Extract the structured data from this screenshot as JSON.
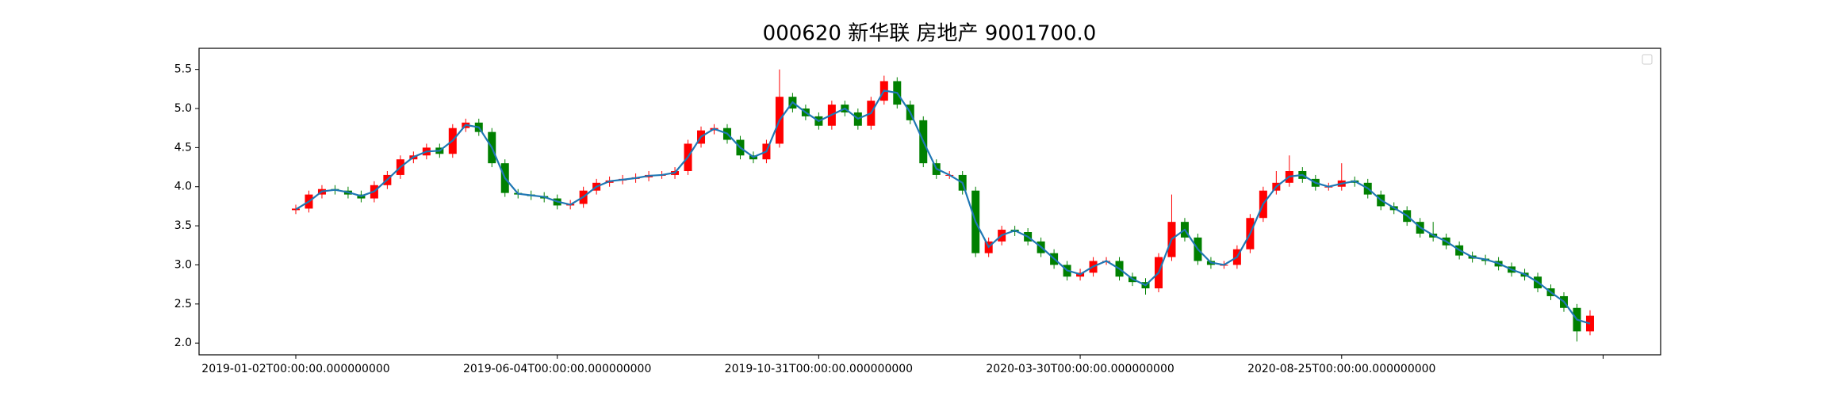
{
  "chart_data": {
    "type": "candlestick",
    "title": "000620 新华联 房地产 9001700.0",
    "x": [
      0,
      5,
      10,
      15,
      20,
      25,
      30,
      35,
      40,
      45,
      50,
      55,
      60,
      65,
      70,
      75,
      80,
      85,
      90,
      95,
      100,
      105,
      110,
      115,
      120,
      125,
      130,
      135,
      140,
      145,
      150,
      155,
      160,
      165,
      170,
      175,
      180,
      185,
      190,
      195,
      200,
      205,
      210,
      215,
      220,
      225,
      230,
      235,
      240,
      245,
      250,
      255,
      260,
      265,
      270,
      275,
      280,
      285,
      290,
      295,
      300,
      305,
      310,
      315,
      320,
      325,
      330,
      335,
      340,
      345,
      350,
      355,
      360,
      365,
      370,
      375,
      380,
      385,
      390,
      395,
      400,
      405,
      410,
      415,
      420,
      425,
      430,
      435,
      440,
      445,
      450,
      455,
      460,
      465,
      470,
      475,
      480,
      485,
      490,
      495
    ],
    "open": [
      3.7,
      3.72,
      3.9,
      3.97,
      3.95,
      3.9,
      3.85,
      4.02,
      4.15,
      4.35,
      4.4,
      4.5,
      4.42,
      4.75,
      4.82,
      4.7,
      4.3,
      3.92,
      3.9,
      3.88,
      3.85,
      3.76,
      3.78,
      3.95,
      4.05,
      4.08,
      4.1,
      4.12,
      4.15,
      4.15,
      4.2,
      4.55,
      4.72,
      4.75,
      4.6,
      4.4,
      4.35,
      4.55,
      5.15,
      5.0,
      4.9,
      4.78,
      5.05,
      4.95,
      4.78,
      5.1,
      5.35,
      5.05,
      4.85,
      4.3,
      4.15,
      4.15,
      3.95,
      3.15,
      3.3,
      3.45,
      3.42,
      3.3,
      3.15,
      3.0,
      2.85,
      2.9,
      3.05,
      3.05,
      2.85,
      2.78,
      2.7,
      3.1,
      3.55,
      3.35,
      3.05,
      3.0,
      3.0,
      3.2,
      3.6,
      3.95,
      4.05,
      4.2,
      4.1,
      4.0,
      4.0,
      4.08,
      4.05,
      3.9,
      3.75,
      3.7,
      3.55,
      3.4,
      3.35,
      3.25,
      3.12,
      3.08,
      3.05,
      2.98,
      2.9,
      2.85,
      2.7,
      2.6,
      2.45,
      2.15
    ],
    "high": [
      3.77,
      3.95,
      4.02,
      4.02,
      4.0,
      3.95,
      4.07,
      4.2,
      4.4,
      4.45,
      4.55,
      4.55,
      4.8,
      4.87,
      4.87,
      4.75,
      4.35,
      3.97,
      3.95,
      3.93,
      3.9,
      3.83,
      4.0,
      4.1,
      4.13,
      4.15,
      4.17,
      4.2,
      4.2,
      4.25,
      4.6,
      4.77,
      4.8,
      4.8,
      4.65,
      4.45,
      4.6,
      5.5,
      5.2,
      5.05,
      4.95,
      5.1,
      5.1,
      5.0,
      5.15,
      5.42,
      5.4,
      5.1,
      4.9,
      4.35,
      4.2,
      4.2,
      4.0,
      3.35,
      3.5,
      3.5,
      3.47,
      3.35,
      3.2,
      3.05,
      2.95,
      3.1,
      3.1,
      3.1,
      2.9,
      2.83,
      3.15,
      3.9,
      3.6,
      3.4,
      3.1,
      3.05,
      3.25,
      3.65,
      4.0,
      4.2,
      4.4,
      4.25,
      4.15,
      4.05,
      4.3,
      4.13,
      4.1,
      3.95,
      3.8,
      3.75,
      3.6,
      3.55,
      3.4,
      3.3,
      3.17,
      3.13,
      3.1,
      3.03,
      2.95,
      2.9,
      2.75,
      2.65,
      2.5,
      2.42
    ],
    "low": [
      3.65,
      3.67,
      3.85,
      3.9,
      3.85,
      3.8,
      3.8,
      3.97,
      4.1,
      4.3,
      4.35,
      4.37,
      4.37,
      4.7,
      4.65,
      4.25,
      3.87,
      3.85,
      3.83,
      3.8,
      3.71,
      3.71,
      3.73,
      3.9,
      4.0,
      4.03,
      4.05,
      4.07,
      4.1,
      4.1,
      4.15,
      4.5,
      4.67,
      4.55,
      4.35,
      4.3,
      4.3,
      4.5,
      4.95,
      4.85,
      4.73,
      4.73,
      4.9,
      4.73,
      4.73,
      5.05,
      5.0,
      4.8,
      4.25,
      4.1,
      4.1,
      3.9,
      3.1,
      3.1,
      3.25,
      3.37,
      3.25,
      3.1,
      2.95,
      2.8,
      2.8,
      2.85,
      3.0,
      2.8,
      2.73,
      2.62,
      2.65,
      3.05,
      3.3,
      3.0,
      2.95,
      2.95,
      2.95,
      3.15,
      3.55,
      3.9,
      4.0,
      4.05,
      3.95,
      3.95,
      3.95,
      4.0,
      3.85,
      3.7,
      3.65,
      3.5,
      3.35,
      3.3,
      3.2,
      3.07,
      3.03,
      3.0,
      2.93,
      2.85,
      2.8,
      2.65,
      2.55,
      2.4,
      2.02,
      2.1
    ],
    "close": [
      3.72,
      3.9,
      3.97,
      3.95,
      3.9,
      3.85,
      4.02,
      4.15,
      4.35,
      4.4,
      4.5,
      4.42,
      4.75,
      4.82,
      4.7,
      4.3,
      3.92,
      3.9,
      3.88,
      3.85,
      3.76,
      3.78,
      3.95,
      4.05,
      4.08,
      4.1,
      4.12,
      4.15,
      4.15,
      4.2,
      4.55,
      4.72,
      4.75,
      4.6,
      4.4,
      4.35,
      4.55,
      5.15,
      5.0,
      4.9,
      4.78,
      5.05,
      4.95,
      4.78,
      5.1,
      5.35,
      5.05,
      4.85,
      4.3,
      4.15,
      4.15,
      3.95,
      3.15,
      3.3,
      3.45,
      3.42,
      3.3,
      3.15,
      3.0,
      2.85,
      2.9,
      3.05,
      3.05,
      2.85,
      2.78,
      2.7,
      3.1,
      3.55,
      3.35,
      3.05,
      3.0,
      3.0,
      3.2,
      3.6,
      3.95,
      4.05,
      4.2,
      4.1,
      4.0,
      4.0,
      4.08,
      4.05,
      3.9,
      3.75,
      3.7,
      3.55,
      3.4,
      3.35,
      3.25,
      3.12,
      3.08,
      3.05,
      2.98,
      2.9,
      2.85,
      2.7,
      2.6,
      2.45,
      2.15,
      2.35
    ],
    "ma_values": [
      3.71,
      3.81,
      3.94,
      3.96,
      3.93,
      3.88,
      3.94,
      4.09,
      4.25,
      4.38,
      4.45,
      4.46,
      4.59,
      4.79,
      4.76,
      4.5,
      4.11,
      3.91,
      3.89,
      3.87,
      3.81,
      3.77,
      3.87,
      4.0,
      4.07,
      4.09,
      4.11,
      4.14,
      4.15,
      4.18,
      4.38,
      4.64,
      4.74,
      4.68,
      4.5,
      4.38,
      4.45,
      4.85,
      5.08,
      4.95,
      4.84,
      4.92,
      5.0,
      4.87,
      4.94,
      5.23,
      5.2,
      4.95,
      4.58,
      4.23,
      4.15,
      4.05,
      3.55,
      3.23,
      3.38,
      3.44,
      3.36,
      3.23,
      3.08,
      2.93,
      2.88,
      2.98,
      3.05,
      2.95,
      2.82,
      2.74,
      2.9,
      3.33,
      3.45,
      3.2,
      3.03,
      3.0,
      3.1,
      3.4,
      3.78,
      4.0,
      4.13,
      4.15,
      4.05,
      4.0,
      4.04,
      4.07,
      3.98,
      3.83,
      3.73,
      3.63,
      3.48,
      3.38,
      3.3,
      3.19,
      3.1,
      3.07,
      3.02,
      2.94,
      2.88,
      2.78,
      2.65,
      2.53,
      2.3,
      2.25
    ],
    "up_color": "#ff0000",
    "down_color": "#008000",
    "ma_color": "#1f77b4",
    "xlim": [
      -37,
      522
    ],
    "ylim": [
      1.85,
      5.77
    ],
    "xticks": [
      {
        "value": 0,
        "label": "2019-01-02T00:00:00.000000000"
      },
      {
        "value": 100,
        "label": "2019-06-04T00:00:00.000000000"
      },
      {
        "value": 200,
        "label": "2019-10-31T00:00:00.000000000"
      },
      {
        "value": 300,
        "label": "2020-03-30T00:00:00.000000000"
      },
      {
        "value": 400,
        "label": "2020-08-25T00:00:00.000000000"
      },
      {
        "value": 500,
        "label": null
      }
    ],
    "yticks": [
      {
        "value": 2,
        "label": "2.0"
      },
      2.5,
      {
        "value": 3,
        "label": "3.0"
      },
      3.5,
      {
        "value": 4,
        "label": "4.0"
      },
      4.5,
      {
        "value": 5,
        "label": "5.0"
      },
      5.5
    ],
    "legend": "upper right"
  }
}
